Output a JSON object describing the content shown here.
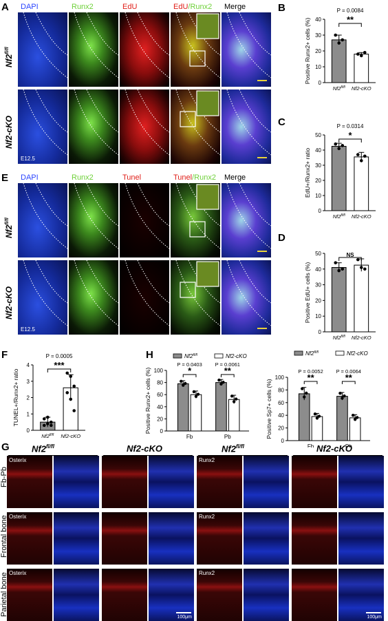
{
  "panels": {
    "A": {
      "label": "A",
      "channels": [
        "DAPI",
        "Runx2",
        "EdU",
        "EdU/Runx2",
        "Merge"
      ],
      "rows": [
        "Nf2fl/fl",
        "Nf2-cKO"
      ],
      "stage": "E12.5"
    },
    "E": {
      "label": "E",
      "channels": [
        "DAPI",
        "Runx2",
        "Tunel",
        "Tunel/Runx2",
        "Merge"
      ],
      "rows": [
        "Nf2fl/fl",
        "Nf2-cKO"
      ],
      "stage": "E12.5"
    },
    "G": {
      "label": "G",
      "group_titles": [
        "Nf2fl/fl",
        "Nf2-cKO",
        "Nf2fl/fl",
        "Nf2-cKO"
      ],
      "row_labels": [
        "Fb-Pb",
        "Frontal bone",
        "Parietal bone"
      ],
      "stain_left": "Osterix",
      "stain_right": "Runx2",
      "scale": "100μm"
    }
  },
  "chart_data": [
    {
      "id": "B",
      "type": "bar",
      "label": "B",
      "categories": [
        "Nf2fl/fl",
        "Nf2-cKO"
      ],
      "values": [
        27,
        18
      ],
      "errors": [
        3,
        1
      ],
      "points": [
        [
          30,
          25,
          27
        ],
        [
          18,
          17,
          19
        ]
      ],
      "ylabel": "Positive Runx2+ cells (%)",
      "ylim": [
        0,
        40
      ],
      "yticks": [
        0,
        10,
        20,
        30,
        40
      ],
      "pvalue": "P = 0.0084",
      "sig": "**"
    },
    {
      "id": "C",
      "type": "bar",
      "label": "C",
      "categories": [
        "Nf2fl/fl",
        "Nf2-cKO"
      ],
      "values": [
        42.5,
        35.5
      ],
      "errors": [
        2,
        3
      ],
      "points": [
        [
          44,
          41,
          43
        ],
        [
          37,
          33,
          36
        ]
      ],
      "ylabel": "EdU+/Runx2+ ratio",
      "ylim": [
        0,
        50
      ],
      "yticks": [
        0,
        10,
        20,
        30,
        40,
        50
      ],
      "pvalue": "P = 0.0314",
      "sig": "*"
    },
    {
      "id": "D",
      "type": "bar",
      "label": "D",
      "categories": [
        "Nf2fl/fl",
        "Nf2-cKO"
      ],
      "values": [
        41,
        42.5
      ],
      "errors": [
        3,
        4
      ],
      "points": [
        [
          44,
          39,
          40
        ],
        [
          46,
          41,
          40
        ]
      ],
      "ylabel": "Positive EdU+ cells (%)",
      "ylim": [
        0,
        50
      ],
      "yticks": [
        0,
        10,
        20,
        30,
        40,
        50
      ],
      "pvalue": "",
      "sig": "NS"
    },
    {
      "id": "F",
      "type": "bar",
      "label": "F",
      "categories": [
        "Nf2fl/fl",
        "Nf2-cKO"
      ],
      "values": [
        0.5,
        2.6
      ],
      "errors": [
        0.3,
        0.8
      ],
      "points": [
        [
          0.3,
          0.4,
          0.5,
          0.7,
          0.8,
          0.3
        ],
        [
          3.5,
          3.3,
          2.7,
          2.3,
          1.9,
          1.2
        ]
      ],
      "ylabel": "TUNEL+/Runx2+ ratio",
      "ylim": [
        0,
        4
      ],
      "yticks": [
        0,
        1,
        2,
        3,
        4
      ],
      "pvalue": "P = 0.0005",
      "sig": "***"
    },
    {
      "id": "H1",
      "type": "bar",
      "label": "H",
      "categories": [
        "Fb",
        "Pb"
      ],
      "legend": [
        "Nf2fl/fl",
        "Nf2-cKO"
      ],
      "series": [
        {
          "name": "Nf2fl/fl",
          "values": [
            78,
            80
          ],
          "errors": [
            5,
            5
          ]
        },
        {
          "name": "Nf2-cKO",
          "values": [
            60,
            52
          ],
          "errors": [
            6,
            7
          ]
        }
      ],
      "ylabel": "Positive Runx2+ cells (%)",
      "ylim": [
        0,
        100
      ],
      "yticks": [
        0,
        20,
        40,
        60,
        80,
        100
      ],
      "pvalues": [
        "P = 0.0403",
        "P = 0.0061"
      ],
      "sigs": [
        "*",
        "**"
      ]
    },
    {
      "id": "H2",
      "type": "bar",
      "label": "",
      "categories": [
        "Fb",
        "Pb"
      ],
      "legend": [
        "Nf2fl/fl",
        "Nf2-cKO"
      ],
      "series": [
        {
          "name": "Nf2fl/fl",
          "values": [
            74,
            70
          ],
          "errors": [
            10,
            6
          ]
        },
        {
          "name": "Nf2-cKO",
          "values": [
            38,
            36
          ],
          "errors": [
            5,
            5
          ]
        }
      ],
      "ylabel": "Positive Sp7+ cells (%)",
      "ylim": [
        0,
        100
      ],
      "yticks": [
        0,
        20,
        40,
        60,
        80,
        100
      ],
      "pvalues": [
        "P = 0.0052",
        "P = 0.0064"
      ],
      "sigs": [
        "**",
        "**"
      ]
    }
  ],
  "colors": {
    "dapi": "#1a3fd0",
    "runx2": "#6fd13a",
    "edu": "#d61a1a",
    "grey_bar": "#8c8c8c",
    "white_bar": "#ffffff"
  }
}
